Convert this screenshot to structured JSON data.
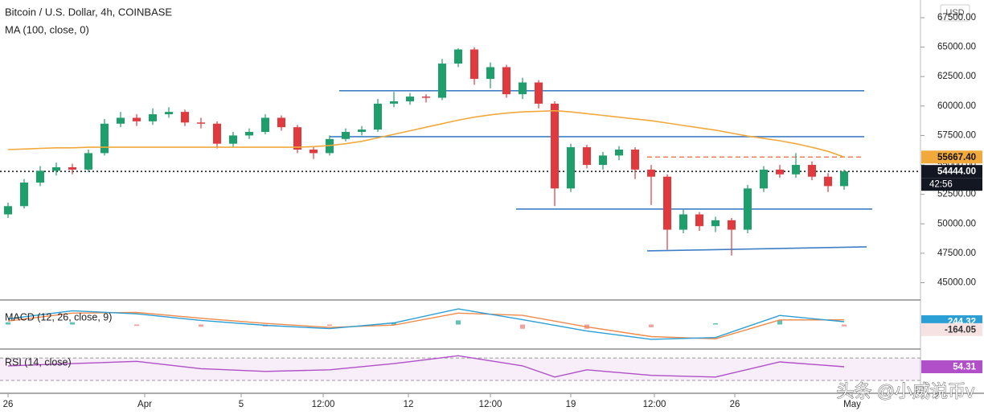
{
  "header": {
    "title": "Bitcoin / U.S. Dollar, 4h, COINBASE",
    "currency": "USD"
  },
  "watermark": "头条 @小威说币v",
  "chart_data": [
    {
      "type": "candlestick",
      "up_color": "#1e9e6a",
      "down_color": "#e0393e",
      "candles": [
        [
          50800,
          51800,
          50500,
          51500
        ],
        [
          51500,
          53800,
          51300,
          53500
        ],
        [
          53500,
          54900,
          53200,
          54500
        ],
        [
          54500,
          55200,
          54100,
          54800
        ],
        [
          54800,
          55100,
          54200,
          54600
        ],
        [
          54600,
          56300,
          54400,
          56000
        ],
        [
          56000,
          58900,
          55800,
          58500
        ],
        [
          58500,
          59500,
          58200,
          59000
        ],
        [
          59000,
          59300,
          58300,
          58700
        ],
        [
          58700,
          59800,
          58400,
          59300
        ],
        [
          59300,
          59900,
          59000,
          59500
        ],
        [
          59500,
          59700,
          58300,
          58600
        ],
        [
          58600,
          59000,
          58100,
          58500
        ],
        [
          58500,
          58700,
          56400,
          56800
        ],
        [
          56800,
          57800,
          56500,
          57500
        ],
        [
          57500,
          58100,
          57200,
          57800
        ],
        [
          57800,
          59300,
          57600,
          59000
        ],
        [
          59000,
          59200,
          57900,
          58200
        ],
        [
          58200,
          58400,
          56000,
          56300
        ],
        [
          56300,
          56600,
          55500,
          56000
        ],
        [
          56000,
          57500,
          55800,
          57200
        ],
        [
          57200,
          58100,
          57000,
          57800
        ],
        [
          57800,
          58300,
          57500,
          58000
        ],
        [
          58000,
          60600,
          57800,
          60200
        ],
        [
          60200,
          61200,
          59900,
          60400
        ],
        [
          60400,
          61100,
          60100,
          60800
        ],
        [
          60800,
          61000,
          60300,
          60700
        ],
        [
          60700,
          64000,
          60500,
          63600
        ],
        [
          63600,
          64900,
          63300,
          64800
        ],
        [
          64800,
          65000,
          61800,
          62300
        ],
        [
          62300,
          63700,
          61500,
          63300
        ],
        [
          63300,
          63500,
          60700,
          61000
        ],
        [
          61000,
          62400,
          60600,
          62000
        ],
        [
          62000,
          62200,
          59800,
          60200
        ],
        [
          60200,
          60400,
          51500,
          53000
        ],
        [
          53000,
          56800,
          52700,
          56500
        ],
        [
          56500,
          56700,
          54700,
          55000
        ],
        [
          55000,
          56100,
          54600,
          55800
        ],
        [
          55800,
          56600,
          55400,
          56300
        ],
        [
          56300,
          56500,
          53800,
          54600
        ],
        [
          54600,
          55000,
          51600,
          54000
        ],
        [
          54000,
          54200,
          47800,
          49500
        ],
        [
          49500,
          51200,
          49200,
          50800
        ],
        [
          50800,
          51000,
          49400,
          49800
        ],
        [
          49800,
          50600,
          49300,
          50300
        ],
        [
          50300,
          50500,
          47300,
          49500
        ],
        [
          49500,
          53300,
          49200,
          53000
        ],
        [
          53000,
          54900,
          52700,
          54600
        ],
        [
          54600,
          55000,
          53900,
          54200
        ],
        [
          54200,
          56000,
          53900,
          55000
        ],
        [
          55000,
          55300,
          53700,
          54000
        ],
        [
          54000,
          54300,
          52700,
          53200
        ],
        [
          53200,
          54600,
          52900,
          54444
        ]
      ],
      "series": [
        {
          "name": "MA (100, close, 0)",
          "color": "#f2a93b",
          "values": [
            56300,
            56350,
            56400,
            56450,
            56450,
            56500,
            56500,
            56500,
            56500,
            56500,
            56500,
            56500,
            56500,
            56500,
            56500,
            56500,
            56500,
            56500,
            56500,
            56550,
            56650,
            56800,
            57000,
            57300,
            57600,
            57900,
            58200,
            58500,
            58800,
            59050,
            59250,
            59400,
            59500,
            59550,
            59600,
            59500,
            59350,
            59200,
            59050,
            58900,
            58750,
            58550,
            58350,
            58150,
            57950,
            57700,
            57450,
            57250,
            57050,
            56800,
            56500,
            56150,
            55667.4
          ]
        }
      ],
      "ma_marker": {
        "value": 55667.4,
        "label": "55667.40"
      },
      "current_price": {
        "value": 54444,
        "label": "54444.00"
      },
      "countdown": "42:56",
      "levels": [
        {
          "x": [
            20.6,
            53.25
          ],
          "y": [
            61300,
            61300
          ],
          "color": "#3f7fc6"
        },
        {
          "x": [
            20.0,
            53.25
          ],
          "y": [
            57400,
            57400
          ],
          "color": "#3f7fc6"
        },
        {
          "x": [
            31.6,
            53.75
          ],
          "y": [
            51250,
            51250
          ],
          "color": "#3f7fc6"
        },
        {
          "x": [
            39.75,
            53.4
          ],
          "y": [
            47700,
            48040
          ],
          "color": "#3f7fc6"
        }
      ],
      "dashed_level": {
        "x": [
          39.75,
          53.25
        ],
        "color": "#f0805a"
      },
      "xlim": [
        -0.5,
        56.75
      ],
      "xticks": [
        {
          "value": 0,
          "label": "26"
        },
        {
          "value": 8.5,
          "label": "Apr"
        },
        {
          "value": 14.5,
          "label": "5"
        },
        {
          "value": 19.6,
          "label": "12:00"
        },
        {
          "value": 24.9,
          "label": "12"
        },
        {
          "value": 30,
          "label": "12:00"
        },
        {
          "value": 35,
          "label": "19"
        },
        {
          "value": 40.2,
          "label": "12:00"
        },
        {
          "value": 45.2,
          "label": "26"
        },
        {
          "value": 52.5,
          "label": "May"
        }
      ],
      "ylim": [
        43600,
        69000
      ],
      "yticks": [
        {
          "value": 45000,
          "label": "45000.00"
        },
        {
          "value": 47500,
          "label": "47500.00"
        },
        {
          "value": 50000,
          "label": "50000.00"
        },
        {
          "value": 52500,
          "label": "52500.00"
        },
        {
          "value": 55000,
          "label": "55000.00"
        },
        {
          "value": 57500,
          "label": "57500.00"
        },
        {
          "value": 60000,
          "label": "60000.00"
        },
        {
          "value": 62500,
          "label": "62500.00"
        },
        {
          "value": 65000,
          "label": "65000.00"
        },
        {
          "value": 67500,
          "label": "67500.00"
        }
      ]
    },
    {
      "type": "macd",
      "title": "MACD (12, 26, close, 9)",
      "x": [
        0,
        4,
        8,
        12,
        16,
        20,
        24,
        28,
        32,
        36,
        40,
        44,
        48,
        52
      ],
      "macd": {
        "color": "#2a9fd6",
        "values": [
          500,
          1200,
          930,
          360,
          -70,
          -360,
          140,
          1360,
          430,
          -570,
          -1290,
          -1140,
          790,
          244.32
        ]
      },
      "signal": {
        "color": "#f08a4b",
        "values": [
          300,
          1000,
          1050,
          550,
          100,
          -250,
          -50,
          1000,
          800,
          -200,
          -1050,
          -1250,
          400,
          408.37
        ]
      },
      "histogram": {
        "up_color": "#5fc3b3",
        "down_color": "#f2a0a0",
        "values": [
          200,
          200,
          -120,
          -190,
          -170,
          -110,
          190,
          360,
          -370,
          -370,
          -240,
          110,
          390,
          -164.05
        ]
      },
      "ylim": [
        -2000,
        2000
      ]
    },
    {
      "type": "rsi",
      "title": "RSI (14, close)",
      "x": [
        0,
        4,
        8,
        12,
        16,
        20,
        24,
        28,
        32,
        34,
        36,
        40,
        44,
        48,
        52
      ],
      "values": [
        56,
        60,
        64,
        51,
        46,
        49,
        60,
        74,
        56,
        36,
        49,
        39,
        36,
        63,
        54.31
      ],
      "color": "#b04fc7",
      "band": [
        30,
        70
      ],
      "ylim": [
        10,
        83
      ]
    }
  ]
}
